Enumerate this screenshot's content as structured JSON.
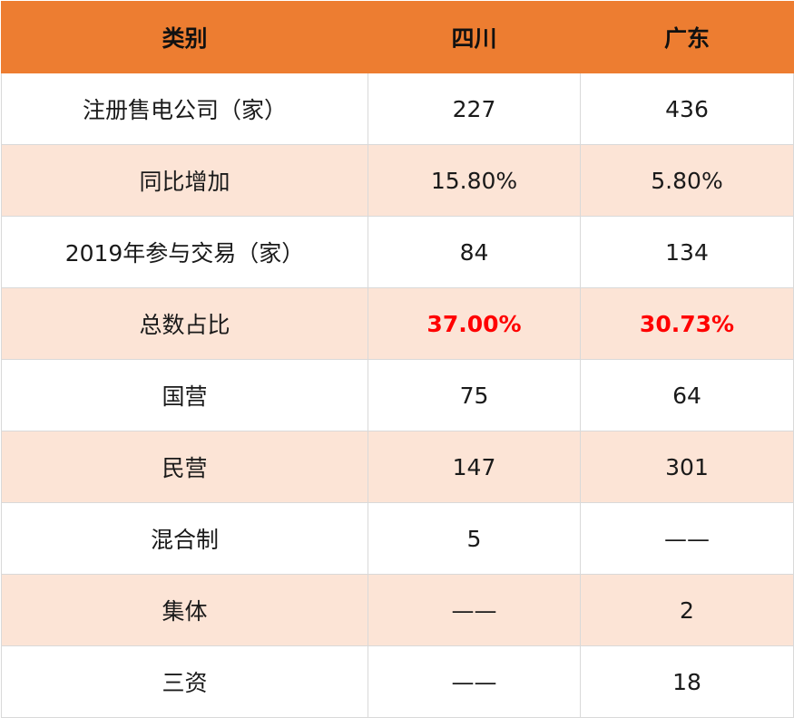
{
  "header": {
    "col1": "类别",
    "col2": "四川",
    "col3": "广东"
  },
  "rows": [
    {
      "label": "注册售电公司（家）",
      "sichuan": "227",
      "guangdong": "436"
    },
    {
      "label": "同比增加",
      "sichuan": "15.80%",
      "guangdong": "5.80%"
    },
    {
      "label": "2019年参与交易（家）",
      "sichuan": "84",
      "guangdong": "134"
    },
    {
      "label": "总数占比",
      "sichuan": "37.00%",
      "guangdong": "30.73%"
    },
    {
      "label": "国营",
      "sichuan": "75",
      "guangdong": "64"
    },
    {
      "label": "民营",
      "sichuan": "147",
      "guangdong": "301"
    },
    {
      "label": "混合制",
      "sichuan": "5",
      "guangdong": "——"
    },
    {
      "label": "集体",
      "sichuan": "——",
      "guangdong": "2"
    },
    {
      "label": "三资",
      "sichuan": "——",
      "guangdong": "18"
    }
  ],
  "colors": {
    "header_bg": "#ed7d31",
    "stripe_bg": "#fce4d6",
    "highlight_text": "#ff0000"
  }
}
